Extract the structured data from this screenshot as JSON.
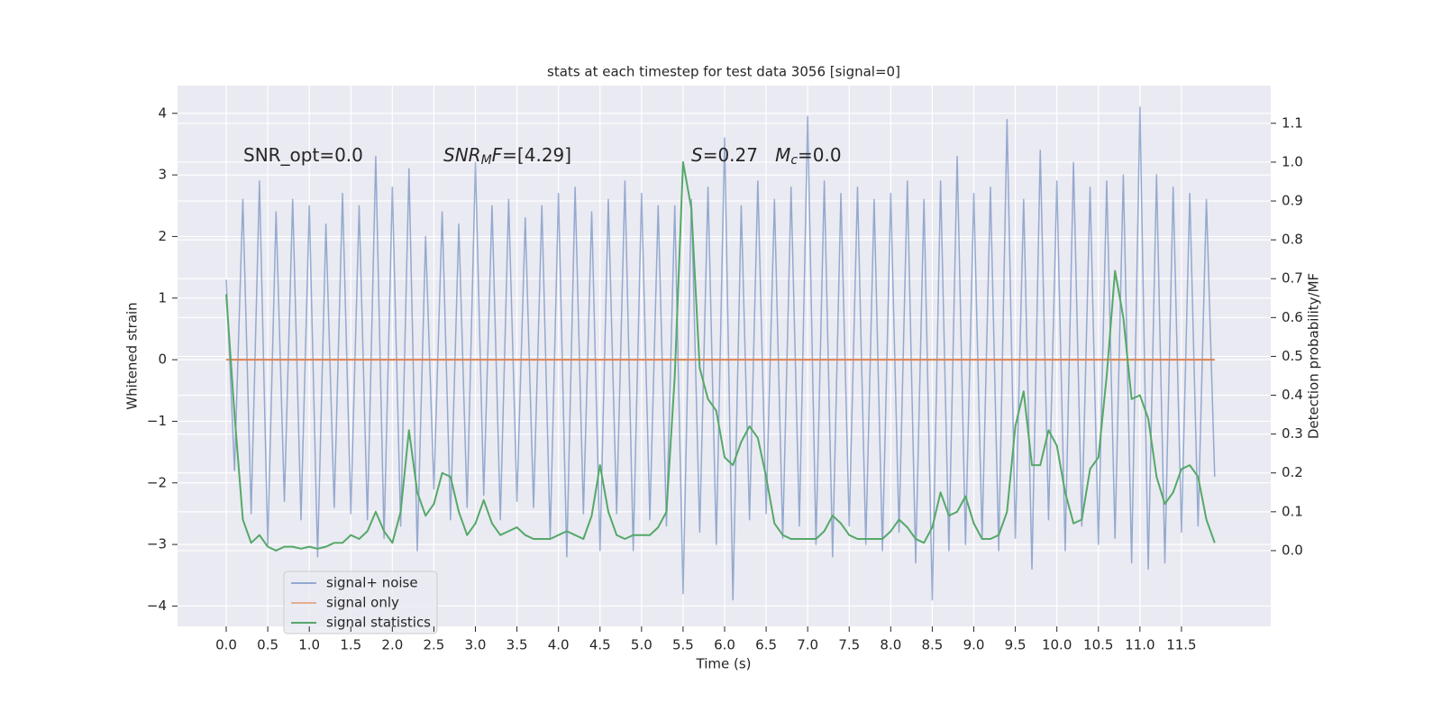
{
  "chart_data": {
    "type": "line",
    "title": "stats at each timestep for test data 3056 [signal=0]",
    "xlabel": "Time (s)",
    "ylabel": "Whitened strain",
    "y2label": "Detection probability/MF",
    "annotations": [
      [
        "SNR_opt=0.0"
      ],
      [
        "SNR",
        "M",
        "F",
        "=[4.29]"
      ],
      [
        "S",
        "=0.27   ",
        "M",
        "c",
        "=0.0"
      ]
    ],
    "grid": true,
    "legend": "lower left",
    "xlim": [
      -0.586,
      12.575
    ],
    "ylim": [
      -4.33,
      4.45
    ],
    "y2lim": [
      -0.195,
      1.197
    ],
    "xticks": [
      {
        "value": 0,
        "label": "0.0"
      },
      0.5,
      {
        "value": 1,
        "label": "1.0"
      },
      1.5,
      {
        "value": 2,
        "label": "2.0"
      },
      2.5,
      {
        "value": 3,
        "label": "3.0"
      },
      3.5,
      {
        "value": 4,
        "label": "4.0"
      },
      4.5,
      {
        "value": 5,
        "label": "5.0"
      },
      5.5,
      {
        "value": 6,
        "label": "6.0"
      },
      6.5,
      {
        "value": 7,
        "label": "7.0"
      },
      7.5,
      {
        "value": 8,
        "label": "8.0"
      },
      8.5,
      {
        "value": 9,
        "label": "9.0"
      },
      9.5,
      {
        "value": 10,
        "label": "10.0"
      },
      10.5,
      {
        "value": 11,
        "label": "11.0"
      },
      11.5
    ],
    "yticks": [
      {
        "value": -4,
        "label": "−4"
      },
      {
        "value": -3,
        "label": "−3"
      },
      {
        "value": -2,
        "label": "−2"
      },
      {
        "value": -1,
        "label": "−1"
      },
      0,
      1,
      2,
      3,
      4
    ],
    "y2ticks": [
      {
        "value": 0,
        "label": "0.0"
      },
      0.1,
      0.2,
      0.3,
      0.4,
      0.5,
      0.6,
      0.7,
      0.8,
      0.9,
      {
        "value": 1,
        "label": "1.0"
      },
      1.1
    ],
    "x": [
      0.0,
      0.1,
      0.2,
      0.3,
      0.4,
      0.5,
      0.6,
      0.7,
      0.8,
      0.9,
      1.0,
      1.1,
      1.2,
      1.3,
      1.4,
      1.5,
      1.6,
      1.7,
      1.8,
      1.9,
      2.0,
      2.1,
      2.2,
      2.3,
      2.4,
      2.5,
      2.6,
      2.7,
      2.8,
      2.9,
      3.0,
      3.1,
      3.2,
      3.3,
      3.4,
      3.5,
      3.6,
      3.7,
      3.8,
      3.9,
      4.0,
      4.1,
      4.2,
      4.3,
      4.4,
      4.5,
      4.6,
      4.7,
      4.8,
      4.9,
      5.0,
      5.1,
      5.2,
      5.3,
      5.4,
      5.5,
      5.6,
      5.7,
      5.8,
      5.9,
      6.0,
      6.1,
      6.2,
      6.3,
      6.4,
      6.5,
      6.6,
      6.7,
      6.8,
      6.9,
      7.0,
      7.1,
      7.2,
      7.3,
      7.4,
      7.5,
      7.6,
      7.7,
      7.8,
      7.9,
      8.0,
      8.1,
      8.2,
      8.3,
      8.4,
      8.5,
      8.6,
      8.7,
      8.8,
      8.9,
      9.0,
      9.1,
      9.2,
      9.3,
      9.4,
      9.5,
      9.6,
      9.7,
      9.8,
      9.9,
      10.0,
      10.1,
      10.2,
      10.3,
      10.4,
      10.5,
      10.6,
      10.7,
      10.8,
      10.9,
      11.0,
      11.1,
      11.2,
      11.3,
      11.4,
      11.5,
      11.6,
      11.7,
      11.8,
      11.9
    ],
    "series": [
      {
        "name": "signal+ noise",
        "color": "#4c72b0",
        "axis": "y",
        "values": [
          1.3,
          -1.8,
          2.6,
          -2.5,
          2.9,
          -3.0,
          2.4,
          -2.3,
          2.6,
          -2.6,
          2.5,
          -3.2,
          2.2,
          -2.4,
          2.7,
          -2.5,
          2.5,
          -2.6,
          3.3,
          -2.9,
          2.8,
          -2.7,
          3.1,
          -3.1,
          2.0,
          -2.1,
          2.4,
          -2.6,
          2.2,
          -2.4,
          3.2,
          -2.2,
          2.5,
          -2.6,
          2.6,
          -2.3,
          2.3,
          -2.4,
          2.5,
          -2.9,
          2.7,
          -3.2,
          2.8,
          -2.5,
          2.4,
          -3.1,
          2.6,
          -2.5,
          2.9,
          -3.1,
          2.7,
          -2.6,
          2.5,
          -2.7,
          2.5,
          -3.8,
          2.6,
          -2.8,
          2.8,
          -3.0,
          3.6,
          -3.9,
          2.5,
          -2.6,
          2.9,
          -2.5,
          2.6,
          -2.9,
          2.8,
          -2.7,
          3.95,
          -3.0,
          2.9,
          -3.2,
          2.7,
          -2.7,
          2.8,
          -3.0,
          2.6,
          -3.1,
          2.7,
          -2.8,
          2.9,
          -3.3,
          2.6,
          -3.9,
          2.9,
          -3.1,
          3.3,
          -3.0,
          2.7,
          -2.9,
          2.8,
          -3.1,
          3.9,
          -2.9,
          2.6,
          -3.4,
          3.4,
          -2.6,
          2.9,
          -3.1,
          3.2,
          -2.7,
          2.8,
          -3.0,
          2.9,
          -2.9,
          3.0,
          -3.3,
          4.1,
          -3.4,
          3.0,
          -3.3,
          2.8,
          -2.8,
          2.7,
          -2.7,
          2.6,
          -1.9
        ]
      },
      {
        "name": "signal only",
        "color": "#dd8452",
        "axis": "y",
        "x": [
          0.0,
          11.9
        ],
        "values": [
          0,
          0
        ]
      },
      {
        "name": "signal statistics",
        "color": "#55a868",
        "axis": "y2",
        "values": [
          0.66,
          0.35,
          0.08,
          0.02,
          0.04,
          0.01,
          0.0,
          0.01,
          0.01,
          0.005,
          0.01,
          0.005,
          0.01,
          0.02,
          0.02,
          0.04,
          0.03,
          0.05,
          0.1,
          0.05,
          0.02,
          0.1,
          0.31,
          0.15,
          0.09,
          0.12,
          0.2,
          0.19,
          0.1,
          0.04,
          0.07,
          0.13,
          0.07,
          0.04,
          0.05,
          0.06,
          0.04,
          0.03,
          0.03,
          0.03,
          0.04,
          0.05,
          0.04,
          0.03,
          0.09,
          0.22,
          0.1,
          0.04,
          0.03,
          0.04,
          0.04,
          0.04,
          0.06,
          0.1,
          0.45,
          1.0,
          0.88,
          0.47,
          0.39,
          0.36,
          0.24,
          0.22,
          0.28,
          0.32,
          0.29,
          0.19,
          0.07,
          0.04,
          0.03,
          0.03,
          0.03,
          0.03,
          0.05,
          0.09,
          0.07,
          0.04,
          0.03,
          0.03,
          0.03,
          0.03,
          0.05,
          0.08,
          0.06,
          0.03,
          0.02,
          0.06,
          0.15,
          0.09,
          0.1,
          0.14,
          0.07,
          0.03,
          0.03,
          0.04,
          0.1,
          0.32,
          0.41,
          0.22,
          0.22,
          0.31,
          0.27,
          0.15,
          0.07,
          0.08,
          0.21,
          0.24,
          0.45,
          0.72,
          0.6,
          0.39,
          0.4,
          0.34,
          0.19,
          0.12,
          0.15,
          0.21,
          0.22,
          0.19,
          0.08,
          0.02
        ]
      }
    ]
  }
}
